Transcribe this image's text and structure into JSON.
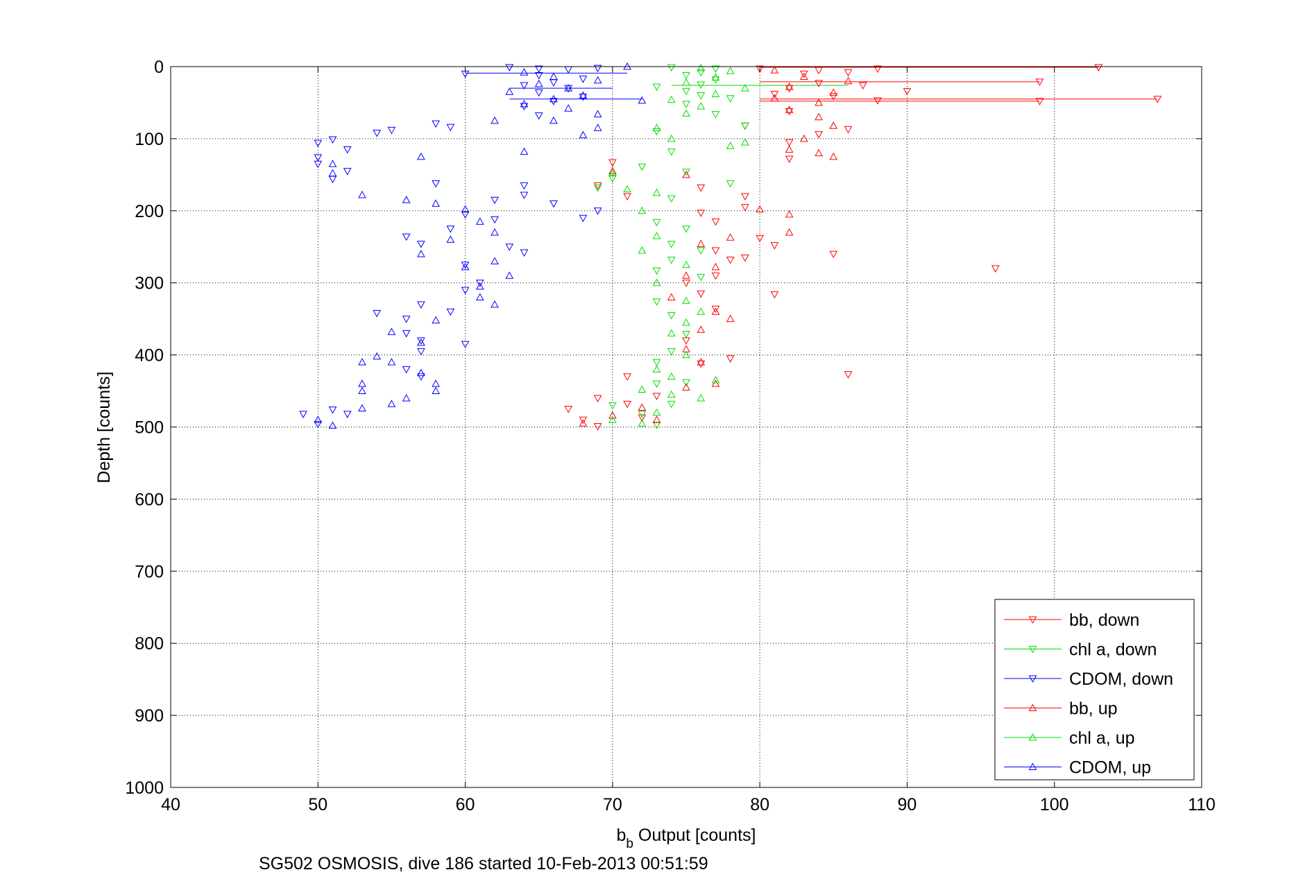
{
  "chart_data": {
    "type": "scatter",
    "title": "",
    "xlabel_main": "b",
    "xlabel_sub": "b",
    "xlabel_rest": " Output [counts]",
    "ylabel": "Depth [counts]",
    "caption": "SG502 OSMOSIS, dive 186 started 10-Feb-2013 00:51:59",
    "xlim": [
      40,
      110
    ],
    "ylim": [
      0,
      1000
    ],
    "y_reversed": true,
    "grid": true,
    "legend_position": "bottom-right",
    "x_ticks": [
      40,
      50,
      60,
      70,
      80,
      90,
      100,
      110
    ],
    "y_ticks": [
      0,
      100,
      200,
      300,
      400,
      500,
      600,
      700,
      800,
      900,
      1000
    ],
    "x_tick_labels": [
      "40",
      "50",
      "60",
      "70",
      "80",
      "90",
      "100",
      "110"
    ],
    "y_tick_labels": [
      "0",
      "100",
      "200",
      "300",
      "400",
      "500",
      "600",
      "700",
      "800",
      "900",
      "1000"
    ],
    "series": [
      {
        "name": "bb, down",
        "color": "#ff0000",
        "marker": "triangle-down",
        "points": [
          [
            103,
            1
          ],
          [
            80,
            3
          ],
          [
            88,
            3
          ],
          [
            84,
            5
          ],
          [
            86,
            8
          ],
          [
            83,
            10
          ],
          [
            99,
            21
          ],
          [
            84,
            23
          ],
          [
            87,
            26
          ],
          [
            82,
            30
          ],
          [
            90,
            34
          ],
          [
            81,
            38
          ],
          [
            85,
            41
          ],
          [
            99,
            48
          ],
          [
            107,
            45
          ],
          [
            88,
            47
          ],
          [
            82,
            62
          ],
          [
            79,
            82
          ],
          [
            86,
            87
          ],
          [
            84,
            94
          ],
          [
            82,
            105
          ],
          [
            82,
            128
          ],
          [
            70,
            133
          ],
          [
            69,
            165
          ],
          [
            76,
            168
          ],
          [
            79,
            180
          ],
          [
            71,
            180
          ],
          [
            79,
            195
          ],
          [
            76,
            203
          ],
          [
            77,
            215
          ],
          [
            80,
            238
          ],
          [
            81,
            248
          ],
          [
            77,
            255
          ],
          [
            79,
            265
          ],
          [
            85,
            260
          ],
          [
            96,
            280
          ],
          [
            78,
            268
          ],
          [
            77,
            290
          ],
          [
            75,
            300
          ],
          [
            76,
            315
          ],
          [
            81,
            316
          ],
          [
            77,
            336
          ],
          [
            75,
            380
          ],
          [
            78,
            405
          ],
          [
            86,
            427
          ],
          [
            71,
            430
          ],
          [
            76,
            412
          ],
          [
            73,
            457
          ],
          [
            71,
            468
          ],
          [
            67,
            475
          ],
          [
            69,
            460
          ],
          [
            68,
            490
          ],
          [
            69,
            499
          ],
          [
            72,
            487
          ]
        ]
      },
      {
        "name": "chl a, down",
        "color": "#00dd00",
        "marker": "triangle-down",
        "points": [
          [
            74,
            1
          ],
          [
            77,
            3
          ],
          [
            76,
            8
          ],
          [
            75,
            12
          ],
          [
            77,
            18
          ],
          [
            76,
            25
          ],
          [
            73,
            28
          ],
          [
            75,
            34
          ],
          [
            76,
            40
          ],
          [
            78,
            44
          ],
          [
            75,
            52
          ],
          [
            77,
            66
          ],
          [
            79,
            82
          ],
          [
            73,
            90
          ],
          [
            74,
            118
          ],
          [
            72,
            139
          ],
          [
            75,
            146
          ],
          [
            78,
            162
          ],
          [
            69,
            168
          ],
          [
            70,
            155
          ],
          [
            74,
            183
          ],
          [
            73,
            216
          ],
          [
            75,
            225
          ],
          [
            74,
            246
          ],
          [
            76,
            255
          ],
          [
            74,
            268
          ],
          [
            73,
            283
          ],
          [
            76,
            292
          ],
          [
            73,
            326
          ],
          [
            74,
            345
          ],
          [
            75,
            371
          ],
          [
            74,
            395
          ],
          [
            73,
            410
          ],
          [
            75,
            438
          ],
          [
            73,
            440
          ],
          [
            74,
            468
          ],
          [
            70,
            470
          ],
          [
            72,
            482
          ],
          [
            73,
            497
          ]
        ]
      },
      {
        "name": "CDOM, down",
        "color": "#0000ff",
        "marker": "triangle-down",
        "points": [
          [
            63,
            1
          ],
          [
            65,
            3
          ],
          [
            67,
            4
          ],
          [
            69,
            2
          ],
          [
            60,
            10
          ],
          [
            65,
            12
          ],
          [
            68,
            17
          ],
          [
            66,
            22
          ],
          [
            64,
            26
          ],
          [
            67,
            30
          ],
          [
            65,
            36
          ],
          [
            68,
            42
          ],
          [
            66,
            48
          ],
          [
            64,
            55
          ],
          [
            65,
            68
          ],
          [
            55,
            88
          ],
          [
            54,
            92
          ],
          [
            58,
            79
          ],
          [
            59,
            84
          ],
          [
            50,
            106
          ],
          [
            51,
            101
          ],
          [
            52,
            115
          ],
          [
            50,
            126
          ],
          [
            50,
            135
          ],
          [
            52,
            145
          ],
          [
            51,
            156
          ],
          [
            58,
            162
          ],
          [
            64,
            165
          ],
          [
            64,
            178
          ],
          [
            62,
            185
          ],
          [
            66,
            190
          ],
          [
            68,
            210
          ],
          [
            69,
            200
          ],
          [
            60,
            205
          ],
          [
            62,
            212
          ],
          [
            59,
            225
          ],
          [
            56,
            236
          ],
          [
            57,
            246
          ],
          [
            63,
            250
          ],
          [
            64,
            258
          ],
          [
            60,
            275
          ],
          [
            61,
            300
          ],
          [
            60,
            310
          ],
          [
            57,
            330
          ],
          [
            59,
            340
          ],
          [
            54,
            342
          ],
          [
            56,
            350
          ],
          [
            56,
            370
          ],
          [
            57,
            380
          ],
          [
            57,
            395
          ],
          [
            56,
            420
          ],
          [
            57,
            430
          ],
          [
            60,
            385
          ],
          [
            49,
            482
          ],
          [
            50,
            496
          ],
          [
            51,
            476
          ],
          [
            52,
            482
          ]
        ]
      },
      {
        "name": "bb, up",
        "color": "#ff0000",
        "marker": "triangle-up",
        "points": [
          [
            81,
            5
          ],
          [
            83,
            14
          ],
          [
            86,
            20
          ],
          [
            82,
            28
          ],
          [
            85,
            36
          ],
          [
            81,
            44
          ],
          [
            84,
            50
          ],
          [
            82,
            60
          ],
          [
            84,
            70
          ],
          [
            85,
            82
          ],
          [
            83,
            100
          ],
          [
            84,
            120
          ],
          [
            85,
            125
          ],
          [
            82,
            115
          ],
          [
            70,
            145
          ],
          [
            75,
            150
          ],
          [
            80,
            198
          ],
          [
            82,
            205
          ],
          [
            82,
            230
          ],
          [
            78,
            237
          ],
          [
            76,
            246
          ],
          [
            77,
            278
          ],
          [
            75,
            290
          ],
          [
            74,
            320
          ],
          [
            77,
            340
          ],
          [
            78,
            350
          ],
          [
            76,
            365
          ],
          [
            75,
            392
          ],
          [
            76,
            410
          ],
          [
            75,
            445
          ],
          [
            77,
            440
          ],
          [
            73,
            490
          ],
          [
            72,
            473
          ],
          [
            70,
            484
          ],
          [
            68,
            495
          ]
        ]
      },
      {
        "name": "chl a, up",
        "color": "#00dd00",
        "marker": "triangle-up",
        "points": [
          [
            76,
            2
          ],
          [
            78,
            6
          ],
          [
            77,
            15
          ],
          [
            75,
            22
          ],
          [
            79,
            30
          ],
          [
            77,
            38
          ],
          [
            74,
            46
          ],
          [
            76,
            55
          ],
          [
            75,
            65
          ],
          [
            73,
            85
          ],
          [
            74,
            100
          ],
          [
            79,
            105
          ],
          [
            78,
            110
          ],
          [
            70,
            148
          ],
          [
            71,
            170
          ],
          [
            73,
            175
          ],
          [
            72,
            200
          ],
          [
            73,
            235
          ],
          [
            72,
            255
          ],
          [
            75,
            275
          ],
          [
            73,
            300
          ],
          [
            75,
            325
          ],
          [
            76,
            340
          ],
          [
            75,
            355
          ],
          [
            74,
            370
          ],
          [
            75,
            400
          ],
          [
            73,
            420
          ],
          [
            74,
            430
          ],
          [
            72,
            448
          ],
          [
            74,
            455
          ],
          [
            76,
            460
          ],
          [
            77,
            435
          ],
          [
            73,
            480
          ],
          [
            72,
            495
          ],
          [
            70,
            490
          ]
        ]
      },
      {
        "name": "CDOM, up",
        "color": "#0000ff",
        "marker": "triangle-up",
        "points": [
          [
            71,
            0
          ],
          [
            64,
            8
          ],
          [
            66,
            14
          ],
          [
            69,
            19
          ],
          [
            65,
            24
          ],
          [
            67,
            30
          ],
          [
            63,
            35
          ],
          [
            68,
            40
          ],
          [
            66,
            45
          ],
          [
            72,
            47
          ],
          [
            64,
            52
          ],
          [
            67,
            58
          ],
          [
            69,
            66
          ],
          [
            66,
            75
          ],
          [
            62,
            75
          ],
          [
            69,
            85
          ],
          [
            68,
            95
          ],
          [
            64,
            118
          ],
          [
            57,
            125
          ],
          [
            51,
            135
          ],
          [
            51,
            148
          ],
          [
            53,
            178
          ],
          [
            56,
            185
          ],
          [
            58,
            190
          ],
          [
            60,
            198
          ],
          [
            61,
            215
          ],
          [
            62,
            230
          ],
          [
            57,
            260
          ],
          [
            59,
            240
          ],
          [
            60,
            278
          ],
          [
            62,
            270
          ],
          [
            63,
            290
          ],
          [
            61,
            305
          ],
          [
            61,
            320
          ],
          [
            62,
            330
          ],
          [
            58,
            352
          ],
          [
            55,
            368
          ],
          [
            57,
            383
          ],
          [
            54,
            402
          ],
          [
            53,
            410
          ],
          [
            53,
            440
          ],
          [
            53,
            450
          ],
          [
            55,
            410
          ],
          [
            57,
            425
          ],
          [
            58,
            440
          ],
          [
            58,
            450
          ],
          [
            56,
            460
          ],
          [
            55,
            468
          ],
          [
            53,
            474
          ],
          [
            51,
            498
          ],
          [
            50,
            490
          ]
        ]
      }
    ],
    "horizontal_lines": [
      {
        "series": "CDOM, down",
        "x0": 60,
        "x1": 71,
        "y": 9
      },
      {
        "series": "CDOM, down",
        "x0": 63,
        "x1": 70,
        "y": 30
      },
      {
        "series": "CDOM, down",
        "x0": 63,
        "x1": 72,
        "y": 45
      },
      {
        "series": "chl a, down",
        "x0": 74,
        "x1": 86,
        "y": 26
      },
      {
        "series": "bb, down",
        "x0": 80,
        "x1": 103,
        "y": 1
      },
      {
        "series": "bb, down",
        "x0": 80,
        "x1": 99,
        "y": 21
      },
      {
        "series": "bb, down",
        "x0": 80,
        "x1": 107,
        "y": 45
      },
      {
        "series": "bb, down",
        "x0": 80,
        "x1": 99,
        "y": 48
      }
    ]
  }
}
